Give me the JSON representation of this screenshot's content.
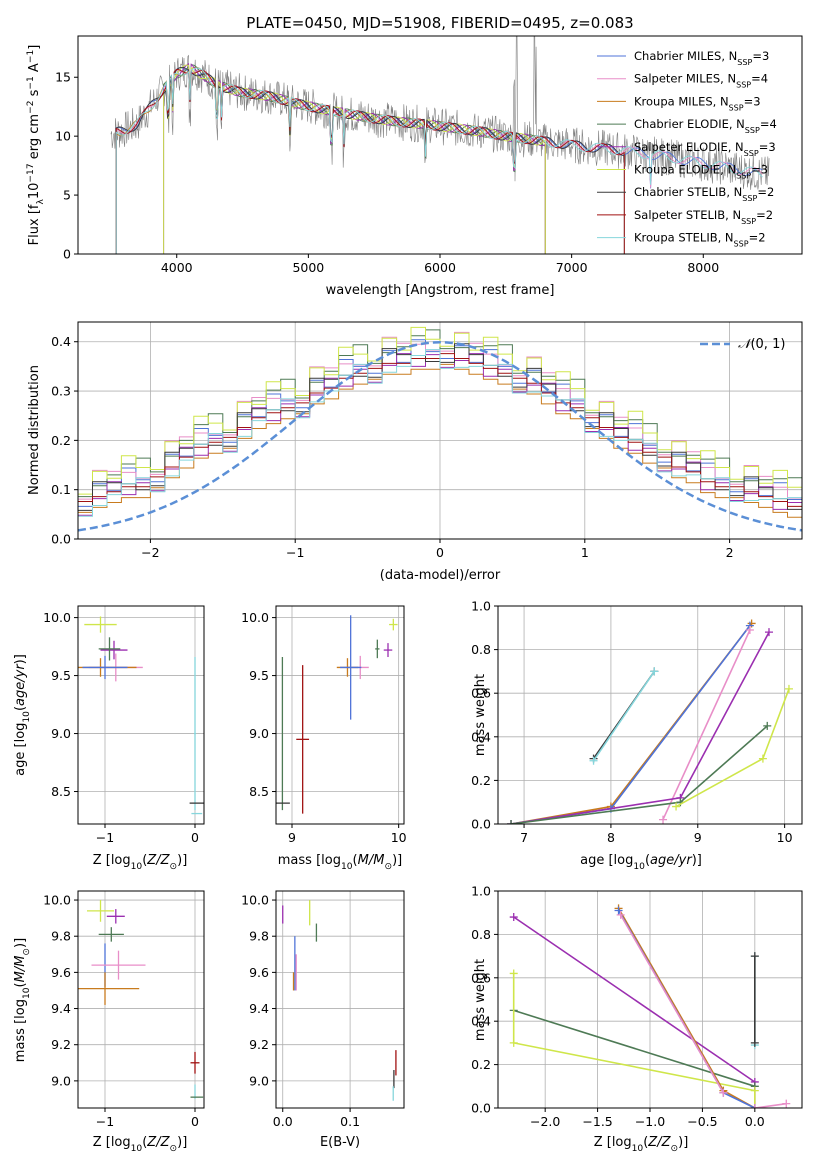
{
  "figure": {
    "title": "PLATE=0450, MJD=51908, FIBERID=0495, z=0.083"
  },
  "colors": {
    "Chabrier MILES": "#4f73d8",
    "Salpeter MILES": "#e88ec8",
    "Kroupa MILES": "#c87b1e",
    "Chabrier ELODIE": "#4e7a55",
    "Salpeter ELODIE": "#9b2fb0",
    "Kroupa ELODIE": "#cfe64a",
    "Chabrier STELIB": "#3a3a3a",
    "Salpeter STELIB": "#a01212",
    "Kroupa STELIB": "#86d6dc",
    "data": "#808080",
    "normal": "#5b8fd6"
  },
  "chart_data": [
    {
      "id": "spectrum",
      "type": "line",
      "title": "PLATE=0450, MJD=51908, FIBERID=0495, z=0.083",
      "xlabel": "wavelength [Angstrom, rest frame]",
      "ylabel": "Flux [fλ10⁻¹⁷ erg cm⁻² s⁻¹ A⁻¹]",
      "xlim": [
        3250,
        8750
      ],
      "ylim": [
        0,
        18.5
      ],
      "xticks": [
        4000,
        5000,
        6000,
        7000,
        8000
      ],
      "yticks": [
        0,
        5,
        10,
        15
      ],
      "legend_position": "top-right",
      "legend": [
        {
          "name": "Chabrier MILES",
          "nssp": "3"
        },
        {
          "name": "Salpeter MILES",
          "nssp": "4"
        },
        {
          "name": "Kroupa MILES",
          "nssp": "3"
        },
        {
          "name": "Chabrier ELODIE",
          "nssp": "4"
        },
        {
          "name": "Salpeter ELODIE",
          "nssp": "3"
        },
        {
          "name": "Kroupa ELODIE",
          "nssp": "3"
        },
        {
          "name": "Chabrier STELIB",
          "nssp": "2"
        },
        {
          "name": "Salpeter STELIB",
          "nssp": "2"
        },
        {
          "name": "Kroupa STELIB",
          "nssp": "2"
        }
      ],
      "model_continuum": {
        "x": [
          3500,
          3600,
          3700,
          3800,
          3900,
          4000,
          4100,
          4200,
          4300,
          4400,
          4500,
          4700,
          4900,
          5100,
          5300,
          5500,
          5700,
          5900,
          6100,
          6300,
          6500,
          6700,
          6900,
          7100,
          7300,
          7500,
          7700,
          7900,
          8100,
          8300,
          8500
        ],
        "y": [
          10.2,
          10.5,
          11.0,
          12.5,
          14.0,
          15.3,
          15.8,
          15.2,
          14.4,
          14.0,
          13.7,
          13.4,
          12.8,
          12.3,
          11.9,
          11.5,
          11.2,
          11.0,
          10.7,
          10.4,
          10.0,
          9.7,
          9.4,
          9.1,
          8.9,
          8.6,
          8.3,
          7.9,
          7.5,
          7.1,
          6.7
        ]
      },
      "absorption_lines": [
        3934,
        3969,
        4101,
        4305,
        4340,
        4861,
        5175,
        5270,
        5890,
        6563,
        7600
      ],
      "emission_lines": [
        6563,
        6583,
        6717,
        6731
      ]
    },
    {
      "id": "residuals",
      "type": "line",
      "xlabel": "(data-model)/error",
      "ylabel": "Normed distribution",
      "xlim": [
        -2.5,
        2.5
      ],
      "ylim": [
        0,
        0.44
      ],
      "xticks": [
        -2,
        -1,
        0,
        1,
        2
      ],
      "yticks": [
        0.0,
        0.1,
        0.2,
        0.3,
        0.4
      ],
      "legend": "𝒩(0, 1)",
      "legend_position": "top-right",
      "bin_width": 0.1,
      "histogram": [
        0.04,
        0.06,
        0.08,
        0.08,
        0.08,
        0.09,
        0.1,
        0.11,
        0.12,
        0.12,
        0.14,
        0.16,
        0.18,
        0.2,
        0.21,
        0.22,
        0.24,
        0.26,
        0.27,
        0.28,
        0.29,
        0.31,
        0.32,
        0.34,
        0.35,
        0.36,
        0.37,
        0.37,
        0.38,
        0.38,
        0.39,
        0.38,
        0.37,
        0.36,
        0.35,
        0.34,
        0.33,
        0.31,
        0.29,
        0.28,
        0.26,
        0.24,
        0.22,
        0.21,
        0.19,
        0.18,
        0.16,
        0.15,
        0.13,
        0.12,
        0.12,
        0.11,
        0.1,
        0.09,
        0.08,
        0.08,
        0.06,
        0.05,
        0.05,
        0.04
      ],
      "series_offsets": [
        0.0,
        0.015,
        -0.012,
        0.02,
        -0.018,
        0.025,
        -0.008,
        0.01,
        -0.02
      ]
    },
    {
      "id": "age-vs-Z",
      "type": "scatter",
      "xlabel": "Z [log₁₀(Z/Z⊙)]",
      "ylabel": "age  [log₁₀(age/yr)]",
      "xlim": [
        -1.3,
        0.1
      ],
      "ylim": [
        8.22,
        10.1
      ],
      "xticks": [
        -1,
        0
      ],
      "yticks": [
        8.5,
        9.0,
        9.5,
        10.0
      ],
      "points": [
        {
          "series": "Kroupa ELODIE",
          "x": -1.05,
          "y": 9.94,
          "xerr": 0.18,
          "yerr": 0.07
        },
        {
          "series": "Salpeter ELODIE",
          "x": -0.9,
          "y": 9.72,
          "xerr": 0.15,
          "yerr": 0.08
        },
        {
          "series": "Chabrier ELODIE",
          "x": -0.95,
          "y": 9.73,
          "xerr": 0.12,
          "yerr": 0.1
        },
        {
          "series": "Salpeter MILES",
          "x": -0.88,
          "y": 9.57,
          "xerr": 0.3,
          "yerr": 0.12
        },
        {
          "series": "Kroupa MILES",
          "x": -1.05,
          "y": 9.57,
          "xerr": 0.4,
          "yerr": 0.08
        },
        {
          "series": "Chabrier MILES",
          "x": -1.0,
          "y": 9.57,
          "xerr": 0.25,
          "yerr": 0.1
        },
        {
          "series": "Kroupa STELIB",
          "x": 0.0,
          "y": 9.0,
          "xerr": 0.01,
          "yerr": 0.66
        },
        {
          "series": "Chabrier STELIB",
          "x": 0.02,
          "y": 8.4,
          "xerr": 0.08,
          "yerr": 0.0
        },
        {
          "series": "Kroupa STELIB",
          "x": 0.02,
          "y": 8.31,
          "xerr": 0.06,
          "yerr": 0.0
        }
      ]
    },
    {
      "id": "age-vs-mass",
      "type": "scatter",
      "xlabel": "mass [log₁₀(M/M⊙)]",
      "xlim": [
        8.85,
        10.05
      ],
      "ylim": [
        8.22,
        10.1
      ],
      "xticks": [
        9,
        10
      ],
      "yticks": [
        8.5,
        9.0,
        9.5,
        10.0
      ],
      "points": [
        {
          "series": "Kroupa ELODIE",
          "x": 9.95,
          "y": 9.94,
          "xerr": 0.04,
          "yerr": 0.05
        },
        {
          "series": "Salpeter ELODIE",
          "x": 9.9,
          "y": 9.72,
          "xerr": 0.04,
          "yerr": 0.06
        },
        {
          "series": "Chabrier ELODIE",
          "x": 9.8,
          "y": 9.73,
          "xerr": 0.02,
          "yerr": 0.08
        },
        {
          "series": "Salpeter MILES",
          "x": 9.64,
          "y": 9.57,
          "xerr": 0.08,
          "yerr": 0.1
        },
        {
          "series": "Kroupa MILES",
          "x": 9.52,
          "y": 9.57,
          "xerr": 0.1,
          "yerr": 0.08
        },
        {
          "series": "Chabrier MILES",
          "x": 9.55,
          "y": 9.57,
          "xerr": 0.1,
          "yerr": 0.45
        },
        {
          "series": "Chabrier ELODIE",
          "x": 8.91,
          "y": 9.0,
          "xerr": 0.0,
          "yerr": 0.66
        },
        {
          "series": "Chabrier STELIB",
          "x": 8.91,
          "y": 8.4,
          "xerr": 0.07,
          "yerr": 0.0
        },
        {
          "series": "Salpeter STELIB",
          "x": 9.1,
          "y": 8.95,
          "xerr": 0.06,
          "yerr": 0.64
        }
      ]
    },
    {
      "id": "massweight-vs-age",
      "type": "line",
      "xlabel": "age  [log₁₀(age/yr)]",
      "ylabel": "mass weight",
      "xlim": [
        6.7,
        10.2
      ],
      "ylim": [
        0,
        1.0
      ],
      "xticks": [
        7,
        8,
        9,
        10
      ],
      "yticks": [
        0.0,
        0.2,
        0.4,
        0.6,
        0.8,
        1.0
      ],
      "series": [
        {
          "name": "Chabrier STELIB",
          "x": [
            7.8,
            8.5
          ],
          "y": [
            0.3,
            0.7
          ]
        },
        {
          "name": "Kroupa STELIB",
          "x": [
            7.8,
            8.5
          ],
          "y": [
            0.29,
            0.7
          ]
        },
        {
          "name": "Kroupa MILES",
          "x": [
            6.85,
            8.0,
            9.62
          ],
          "y": [
            0.0,
            0.08,
            0.92
          ]
        },
        {
          "name": "Chabrier MILES",
          "x": [
            6.85,
            8.0,
            9.6
          ],
          "y": [
            0.0,
            0.07,
            0.91
          ]
        },
        {
          "name": "Salpeter MILES",
          "x": [
            8.6,
            9.6
          ],
          "y": [
            0.02,
            0.89
          ]
        },
        {
          "name": "Salpeter ELODIE",
          "x": [
            6.85,
            8.8,
            9.82
          ],
          "y": [
            0.0,
            0.12,
            0.88
          ]
        },
        {
          "name": "Chabrier ELODIE",
          "x": [
            6.85,
            8.8,
            9.8
          ],
          "y": [
            0.0,
            0.1,
            0.45
          ]
        },
        {
          "name": "Kroupa ELODIE",
          "x": [
            8.75,
            9.75,
            10.05
          ],
          "y": [
            0.08,
            0.3,
            0.62
          ]
        }
      ]
    },
    {
      "id": "mass-vs-Z",
      "type": "scatter",
      "xlabel": "Z [log₁₀(Z/Z⊙)]",
      "ylabel": "mass [log₁₀(M/M⊙)]",
      "xlim": [
        -1.3,
        0.1
      ],
      "ylim": [
        8.85,
        10.05
      ],
      "xticks": [
        -1,
        0
      ],
      "yticks": [
        9.0,
        9.2,
        9.4,
        9.6,
        9.8,
        10.0
      ],
      "points": [
        {
          "series": "Kroupa ELODIE",
          "x": -1.05,
          "y": 9.94,
          "xerr": 0.15,
          "yerr": 0.06
        },
        {
          "series": "Salpeter ELODIE",
          "x": -0.88,
          "y": 9.91,
          "xerr": 0.1,
          "yerr": 0.04
        },
        {
          "series": "Chabrier ELODIE",
          "x": -0.93,
          "y": 9.81,
          "xerr": 0.14,
          "yerr": 0.04
        },
        {
          "series": "Chabrier MILES",
          "x": -1.0,
          "y": 9.64,
          "xerr": 0.0,
          "yerr": 0.12
        },
        {
          "series": "Salpeter MILES",
          "x": -0.85,
          "y": 9.64,
          "xerr": 0.3,
          "yerr": 0.08
        },
        {
          "series": "Kroupa MILES",
          "x": -1.0,
          "y": 9.51,
          "xerr": 0.38,
          "yerr": 0.09
        },
        {
          "series": "Salpeter STELIB",
          "x": 0.0,
          "y": 9.1,
          "xerr": 0.05,
          "yerr": 0.06
        },
        {
          "series": "Kroupa STELIB",
          "x": 0.0,
          "y": 8.94,
          "xerr": 0.0,
          "yerr": 0.04
        },
        {
          "series": "Chabrier ELODIE",
          "x": 0.02,
          "y": 8.91,
          "xerr": 0.07,
          "yerr": 0.0
        }
      ]
    },
    {
      "id": "mass-vs-ebv",
      "type": "scatter",
      "xlabel": "E(B-V)",
      "xlim": [
        -0.01,
        0.18
      ],
      "ylim": [
        8.85,
        10.05
      ],
      "xticks": [
        0.0,
        0.1
      ],
      "yticks": [
        9.0,
        9.2,
        9.4,
        9.6,
        9.8,
        10.0
      ],
      "points": [
        {
          "series": "Salpeter ELODIE",
          "x": 0.0,
          "y": 9.92,
          "yerr": 0.05
        },
        {
          "series": "Kroupa ELODIE",
          "x": 0.04,
          "y": 9.93,
          "yerr": 0.07
        },
        {
          "series": "Chabrier ELODIE",
          "x": 0.05,
          "y": 9.82,
          "yerr": 0.05
        },
        {
          "series": "Chabrier MILES",
          "x": 0.018,
          "y": 9.65,
          "yerr": 0.15
        },
        {
          "series": "Salpeter MILES",
          "x": 0.02,
          "y": 9.6,
          "yerr": 0.1
        },
        {
          "series": "Kroupa MILES",
          "x": 0.016,
          "y": 9.55,
          "yerr": 0.05
        },
        {
          "series": "Salpeter STELIB",
          "x": 0.168,
          "y": 9.1,
          "yerr": 0.07
        },
        {
          "series": "Chabrier STELIB",
          "x": 0.165,
          "y": 9.01,
          "yerr": 0.05
        },
        {
          "series": "Kroupa STELIB",
          "x": 0.164,
          "y": 8.93,
          "yerr": 0.04
        }
      ]
    },
    {
      "id": "massweight-vs-Z",
      "type": "line",
      "xlabel": "Z [log₁₀(Z/Z⊙)]",
      "ylabel": "mass weight",
      "xlim": [
        -2.45,
        0.45
      ],
      "ylim": [
        0,
        1.0
      ],
      "xticks": [
        -2.0,
        -1.5,
        -1.0,
        -0.5,
        0.0
      ],
      "yticks": [
        0.0,
        0.2,
        0.4,
        0.6,
        0.8,
        1.0
      ],
      "series": [
        {
          "name": "Salpeter ELODIE",
          "x": [
            -2.3,
            0.0,
            0.0
          ],
          "y": [
            0.88,
            0.12,
            0.0
          ]
        },
        {
          "name": "Chabrier ELODIE",
          "x": [
            -2.3,
            0.0
          ],
          "y": [
            0.45,
            0.1
          ]
        },
        {
          "name": "Kroupa ELODIE",
          "x": [
            -2.3,
            -2.3,
            0.0,
            0.0
          ],
          "y": [
            0.62,
            0.3,
            0.08,
            0.0
          ]
        },
        {
          "name": "Kroupa MILES",
          "x": [
            -1.3,
            -0.3,
            0.0
          ],
          "y": [
            0.92,
            0.08,
            0.0
          ]
        },
        {
          "name": "Chabrier MILES",
          "x": [
            -1.3,
            -0.3,
            0.0
          ],
          "y": [
            0.91,
            0.07,
            0.0
          ]
        },
        {
          "name": "Salpeter MILES",
          "x": [
            -1.28,
            -0.3
          ],
          "y": [
            0.89,
            0.07
          ]
        },
        {
          "name": "Salpeter MILES",
          "x": [
            0.0,
            0.3
          ],
          "y": [
            0.0,
            0.02
          ]
        },
        {
          "name": "Kroupa STELIB",
          "x": [
            0.0,
            0.0
          ],
          "y": [
            0.29,
            0.7
          ]
        },
        {
          "name": "Chabrier STELIB",
          "x": [
            0.0,
            0.0
          ],
          "y": [
            0.3,
            0.7
          ]
        }
      ]
    }
  ]
}
